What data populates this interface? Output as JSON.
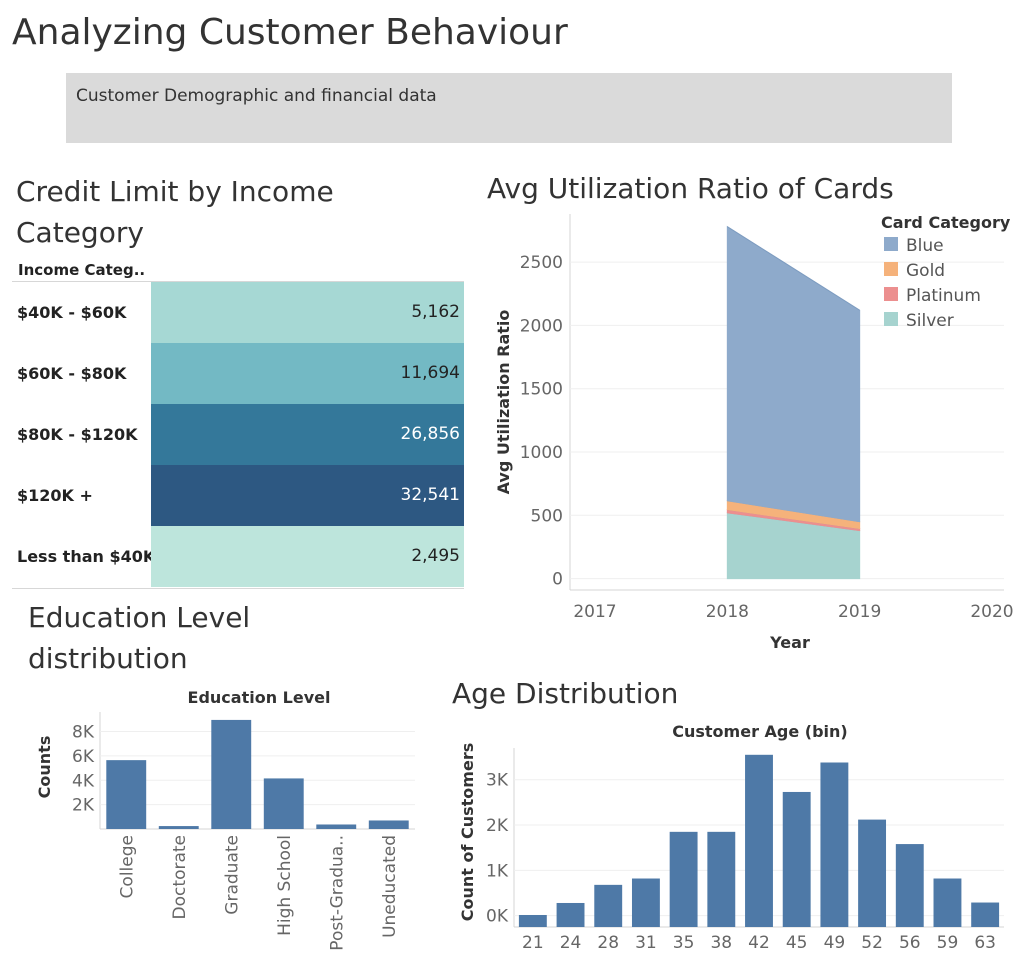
{
  "dashboard": {
    "title": "Analyzing Customer Behaviour",
    "subtitle": "Customer Demographic and financial data"
  },
  "credit_limit": {
    "title": "Credit Limit by Income Category",
    "column_header": "Income Categ..",
    "rows": [
      {
        "label": "$40K - $60K",
        "value": "5,162",
        "color": "#a6d8d4",
        "text_color": "#222222"
      },
      {
        "label": "$60K - $80K",
        "value": "11,694",
        "color": "#73b9c4",
        "text_color": "#222222"
      },
      {
        "label": "$80K - $120K",
        "value": "26,856",
        "color": "#34789a",
        "text_color": "#ffffff"
      },
      {
        "label": "$120K +",
        "value": "32,541",
        "color": "#2d5882",
        "text_color": "#ffffff"
      },
      {
        "label": "Less than $40K",
        "value": "2,495",
        "color": "#bde5dc",
        "text_color": "#222222"
      }
    ]
  },
  "chart_data": [
    {
      "type": "area",
      "title": "Avg Utilization Ratio of Cards",
      "xlabel": "Year",
      "ylabel": "Avg Utilization Ratio",
      "x_ticks": [
        "2017",
        "2018",
        "2019",
        "2020"
      ],
      "x_range": [
        2017,
        2020
      ],
      "y_ticks": [
        "0",
        "500",
        "1000",
        "1500",
        "2000",
        "2500"
      ],
      "ylim": [
        -90,
        2880
      ],
      "x": [
        2018,
        2019
      ],
      "stacked": true,
      "legend_title": "Card Category",
      "series": [
        {
          "name": "Silver",
          "values": [
            520,
            380
          ],
          "color": "#a6d3cf"
        },
        {
          "name": "Platinum",
          "values": [
            25,
            15
          ],
          "color": "#ec8f8f"
        },
        {
          "name": "Gold",
          "values": [
            70,
            55
          ],
          "color": "#f5b27b"
        },
        {
          "name": "Blue",
          "values": [
            2165,
            1670
          ],
          "color": "#8eaacb"
        }
      ],
      "legend_order": [
        "Blue",
        "Gold",
        "Platinum",
        "Silver"
      ]
    },
    {
      "type": "bar",
      "title": "Education Level distribution",
      "header": "Education Level",
      "ylabel": "Counts",
      "categories": [
        "College",
        "Doctorate",
        "Graduate",
        "High School",
        "Post-Gradua..",
        "Uneducated"
      ],
      "values": [
        5650,
        240,
        8950,
        4150,
        370,
        700
      ],
      "y_ticks": [
        "2K",
        "4K",
        "6K",
        "8K"
      ],
      "y_tick_values": [
        2000,
        4000,
        6000,
        8000
      ],
      "ylim": [
        0,
        9600
      ],
      "color": "#4e79a7"
    },
    {
      "type": "bar",
      "title": "Age Distribution",
      "header": "Customer Age (bin)",
      "ylabel": "Count of Customers",
      "categories": [
        "21",
        "24",
        "28",
        "31",
        "35",
        "38",
        "42",
        "45",
        "49",
        "52",
        "56",
        "59",
        "63"
      ],
      "values": [
        15,
        280,
        680,
        820,
        1850,
        1850,
        3550,
        2730,
        3380,
        2120,
        1580,
        820,
        290
      ],
      "y_ticks": [
        "0K",
        "1K",
        "2K",
        "3K"
      ],
      "y_tick_values": [
        0,
        1000,
        2000,
        3000
      ],
      "ylim": [
        -250,
        3700
      ],
      "color": "#4e79a7"
    }
  ]
}
